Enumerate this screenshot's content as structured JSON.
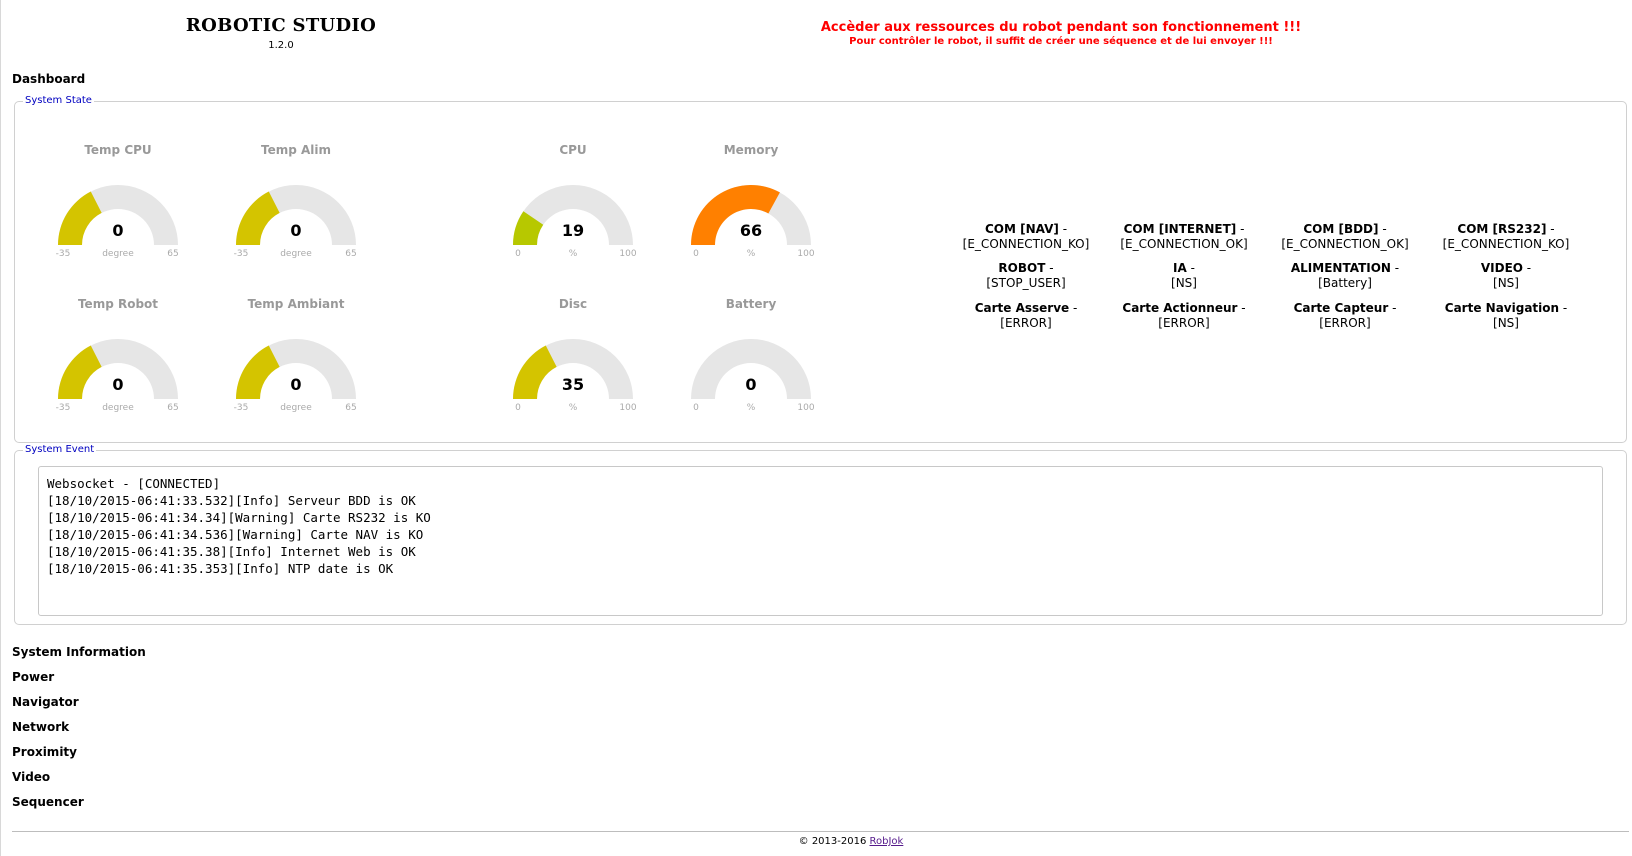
{
  "header": {
    "title": "ROBOTIC STUDIO",
    "version": "1.2.0",
    "alert_main": "Accèder aux ressources du robot pendant son fonctionnement !!!",
    "alert_sub": "Pour contrôler le robot, il suffit de créer une séquence et de lui envoyer !!!"
  },
  "nav": {
    "dashboard": "Dashboard",
    "items": [
      "System Information",
      "Power",
      "Navigator",
      "Network",
      "Proximity",
      "Video",
      "Sequencer"
    ]
  },
  "system_state": {
    "legend": "System State",
    "gauges": [
      {
        "title": "Temp CPU",
        "value": 0,
        "min": -35,
        "max": 65,
        "unit": "degree",
        "color": "#d4c400"
      },
      {
        "title": "Temp Alim",
        "value": 0,
        "min": -35,
        "max": 65,
        "unit": "degree",
        "color": "#d4c400"
      },
      {
        "title": "CPU",
        "value": 19,
        "min": 0,
        "max": 100,
        "unit": "%",
        "color": "#b7c800"
      },
      {
        "title": "Memory",
        "value": 66,
        "min": 0,
        "max": 100,
        "unit": "%",
        "color": "#ff8000"
      },
      {
        "title": "Temp Robot",
        "value": 0,
        "min": -35,
        "max": 65,
        "unit": "degree",
        "color": "#d4c400"
      },
      {
        "title": "Temp Ambiant",
        "value": 0,
        "min": -35,
        "max": 65,
        "unit": "degree",
        "color": "#d4c400"
      },
      {
        "title": "Disc",
        "value": 35,
        "min": 0,
        "max": 100,
        "unit": "%",
        "color": "#d4c400"
      },
      {
        "title": "Battery",
        "value": 0,
        "min": 0,
        "max": 100,
        "unit": "%",
        "color": "#d4c400"
      }
    ],
    "gauge_track_color": "#e6e6e6",
    "statuses": [
      {
        "name": "COM [NAV]",
        "sep": " - ",
        "value": "[E_CONNECTION_KO]"
      },
      {
        "name": "COM [INTERNET]",
        "sep": " - ",
        "value": "[E_CONNECTION_OK]"
      },
      {
        "name": "COM [BDD]",
        "sep": " - ",
        "value": "[E_CONNECTION_OK]"
      },
      {
        "name": "COM [RS232]",
        "sep": " - ",
        "value": "[E_CONNECTION_KO]"
      },
      {
        "name": "ROBOT",
        "sep": " - ",
        "value": "[STOP_USER]"
      },
      {
        "name": "IA",
        "sep": " - ",
        "value": "[NS]"
      },
      {
        "name": "ALIMENTATION",
        "sep": " - ",
        "value": "[Battery]"
      },
      {
        "name": "VIDEO",
        "sep": " - ",
        "value": "[NS]"
      },
      {
        "name": "Carte Asserve",
        "sep": " - ",
        "value": "[ERROR]"
      },
      {
        "name": "Carte Actionneur",
        "sep": " - ",
        "value": "[ERROR]"
      },
      {
        "name": "Carte Capteur",
        "sep": " - ",
        "value": "[ERROR]"
      },
      {
        "name": "Carte Navigation",
        "sep": " - ",
        "value": "[NS]"
      }
    ]
  },
  "system_event": {
    "legend": "System Event",
    "lines": [
      "Websocket - [CONNECTED]",
      "[18/10/2015-06:41:33.532][Info] Serveur BDD is OK",
      "[18/10/2015-06:41:34.34][Warning] Carte RS232 is KO",
      "[18/10/2015-06:41:34.536][Warning] Carte NAV is KO",
      "[18/10/2015-06:41:35.38][Info] Internet Web is OK",
      "[18/10/2015-06:41:35.353][Info] NTP date is OK"
    ]
  },
  "footer": {
    "copyright": "© 2013-2016",
    "link": "RobJok"
  }
}
